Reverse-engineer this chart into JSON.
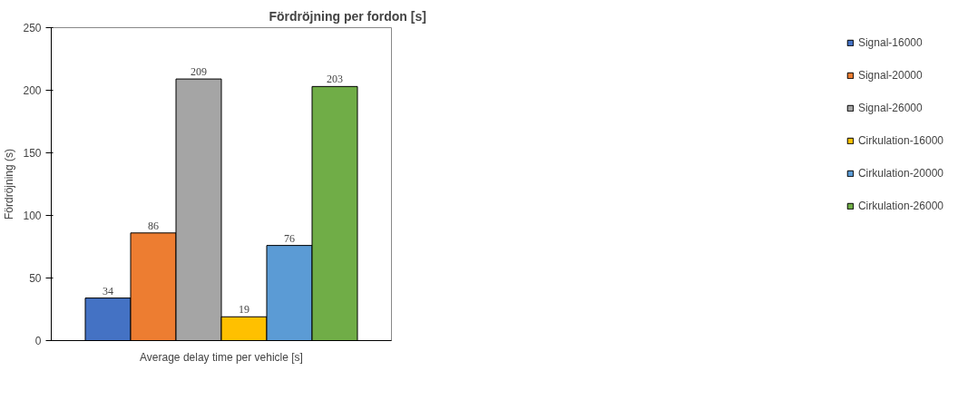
{
  "chart_data": {
    "type": "bar",
    "title": "Fördröjning per fordon [s]",
    "ylabel": "Fördröjning (s)",
    "categories": [
      "Average delay time per vehicle [s]"
    ],
    "series": [
      {
        "name": "Signal-16000",
        "color": "#4472c4",
        "values": [
          34
        ]
      },
      {
        "name": "Signal-20000",
        "color": "#ed7d31",
        "values": [
          86
        ]
      },
      {
        "name": "Signal-26000",
        "color": "#a5a5a5",
        "values": [
          209
        ]
      },
      {
        "name": "Cirkulation-16000",
        "color": "#ffc000",
        "values": [
          19
        ]
      },
      {
        "name": "Cirkulation-20000",
        "color": "#5b9bd5",
        "values": [
          76
        ]
      },
      {
        "name": "Cirkulation-26000",
        "color": "#70ad47",
        "values": [
          203
        ]
      }
    ],
    "ylim": [
      0,
      250
    ],
    "yticks": [
      0,
      50,
      100,
      150,
      200,
      250
    ],
    "grid": false,
    "legend": "right",
    "data_labels": true
  }
}
